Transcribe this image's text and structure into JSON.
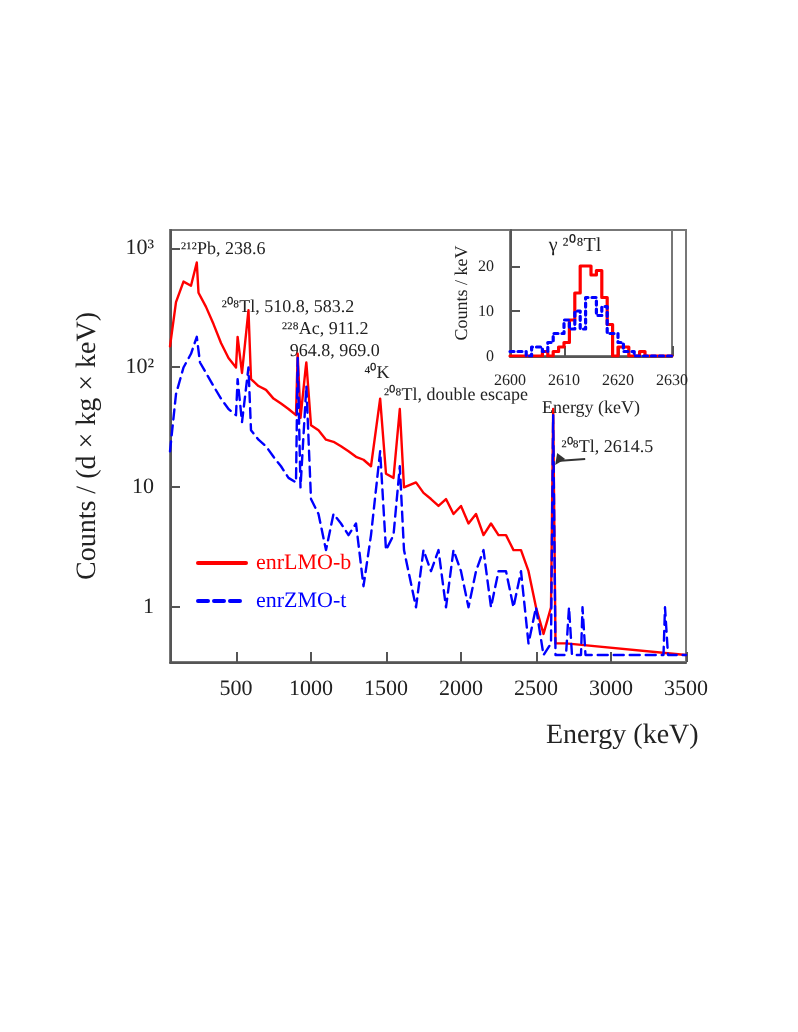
{
  "chart_data": [
    {
      "type": "line",
      "xlabel": "Energy (keV)",
      "ylabel": "Counts / (d × kg × keV)",
      "log": "y",
      "xlim": [
        60,
        3500
      ],
      "xticks": [
        500,
        1000,
        1500,
        2000,
        2500,
        3000,
        3500
      ],
      "ylim": [
        0.35,
        1400
      ],
      "yticks": [
        1,
        10,
        {
          "value": 100,
          "label": "10²"
        },
        {
          "value": 1000,
          "label": "10³"
        }
      ],
      "grid": false,
      "legend": "bottom left",
      "series": [
        {
          "name": "enrLMO-b",
          "color": "#ff0000",
          "line_style": "solid",
          "x": [
            60,
            100,
            150,
            200,
            238.6,
            250,
            300,
            350,
            400,
            450,
            500,
            510.8,
            540,
            583.2,
            600,
            650,
            700,
            750,
            800,
            850,
            900,
            911.2,
            930,
            964.8,
            969,
            1000,
            1050,
            1100,
            1150,
            1200,
            1250,
            1300,
            1350,
            1400,
            1461,
            1500,
            1550,
            1592,
            1620,
            1700,
            1750,
            1800,
            1850,
            1900,
            1950,
            2000,
            2050,
            2100,
            2150,
            2200,
            2250,
            2300,
            2350,
            2400,
            2450,
            2500,
            2550,
            2600,
            2614.5,
            2630,
            2700,
            3500
          ],
          "values": [
            150,
            350,
            520,
            480,
            750,
            420,
            320,
            230,
            160,
            120,
            100,
            180,
            90,
            300,
            80,
            70,
            65,
            55,
            50,
            45,
            40,
            130,
            38,
            100,
            110,
            33,
            30,
            25,
            24,
            22,
            20,
            18,
            17,
            15,
            55,
            13,
            12,
            45,
            10,
            11,
            9,
            8,
            7,
            8,
            6,
            7,
            5,
            6,
            4,
            5,
            4,
            4,
            3,
            3,
            2,
            1,
            0.6,
            1,
            45,
            0.5,
            0.5,
            0.4
          ]
        },
        {
          "name": "enrZMO-t",
          "color": "#0000ff",
          "line_style": "dashed",
          "x": [
            60,
            100,
            150,
            200,
            238.6,
            260,
            300,
            350,
            400,
            450,
            500,
            510.8,
            540,
            583.2,
            600,
            650,
            700,
            750,
            800,
            850,
            900,
            911.2,
            930,
            969,
            1000,
            1050,
            1100,
            1150,
            1200,
            1250,
            1300,
            1350,
            1400,
            1461,
            1500,
            1550,
            1592,
            1620,
            1700,
            1750,
            1800,
            1850,
            1900,
            1950,
            2000,
            2050,
            2100,
            2150,
            2200,
            2250,
            2300,
            2350,
            2400,
            2450,
            2500,
            2550,
            2600,
            2614.5,
            2630,
            2700,
            2720,
            2740,
            2800,
            2810,
            2830,
            3350,
            3360,
            3380,
            3500
          ],
          "values": [
            20,
            60,
            100,
            130,
            180,
            110,
            90,
            70,
            55,
            45,
            40,
            80,
            35,
            100,
            30,
            25,
            22,
            18,
            15,
            12,
            11,
            120,
            10,
            70,
            8,
            6,
            3,
            6,
            5,
            4,
            5,
            1.5,
            4,
            20,
            3,
            4,
            15,
            3,
            1,
            3,
            2,
            3,
            1,
            3,
            2,
            1,
            2,
            3,
            1,
            2,
            2,
            1,
            2,
            0.5,
            1,
            0.4,
            0.5,
            40,
            0.4,
            0.4,
            1,
            0.4,
            0.4,
            1,
            0.4,
            0.4,
            1,
            0.4,
            0.4
          ]
        }
      ],
      "annotations": [
        {
          "text": "²¹²Pb, 238.6",
          "x": 238.6,
          "y": 750
        },
        {
          "text": "²⁰⁸Tl, 510.8, 583.2",
          "x": 510.8,
          "y": 180
        },
        {
          "text": "²²⁸Ac, 911.2",
          "x": 911.2,
          "y": 130
        },
        {
          "text": "964.8, 969.0",
          "x": 964.8,
          "y": 100
        },
        {
          "text": "⁴⁰K",
          "x": 1461,
          "y": 55
        },
        {
          "text": "²⁰⁸Tl, double escape",
          "x": 1592,
          "y": 45
        },
        {
          "text": "²⁰⁸Tl, 2614.5",
          "x": 2614.5,
          "y": 45
        }
      ]
    },
    {
      "type": "histogram",
      "xlabel": "Energy (keV)",
      "ylabel": "Counts / keV",
      "xlim": [
        2600,
        2630
      ],
      "xticks": [
        2600,
        2610,
        2620,
        2630
      ],
      "ylim": [
        0,
        28
      ],
      "yticks": [
        0,
        10,
        20
      ],
      "grid": false,
      "bins": [
        2600,
        2601,
        2602,
        2603,
        2604,
        2605,
        2606,
        2607,
        2608,
        2609,
        2610,
        2611,
        2612,
        2613,
        2614,
        2615,
        2616,
        2617,
        2618,
        2619,
        2620,
        2621,
        2622,
        2623,
        2624,
        2625,
        2626,
        2627,
        2628,
        2629,
        2630
      ],
      "series": [
        {
          "color": "#ff0000",
          "line_style": "solid",
          "values": [
            0,
            0,
            0,
            0,
            0,
            0,
            1,
            0,
            1,
            2,
            3,
            8,
            14,
            20,
            20,
            18,
            19,
            13,
            7,
            0,
            2,
            2,
            0,
            0,
            1,
            0,
            0,
            0,
            0,
            0
          ]
        },
        {
          "color": "#0000ff",
          "line_style": "dotted",
          "values": [
            1,
            1,
            1,
            0,
            2,
            2,
            1,
            3,
            5,
            5,
            8,
            6,
            10,
            6,
            13,
            13,
            9,
            11,
            5,
            5,
            3,
            1,
            1,
            0,
            0,
            0,
            0,
            0,
            0,
            0
          ]
        }
      ],
      "annotations": [
        "γ ²⁰⁸Tl"
      ]
    }
  ]
}
